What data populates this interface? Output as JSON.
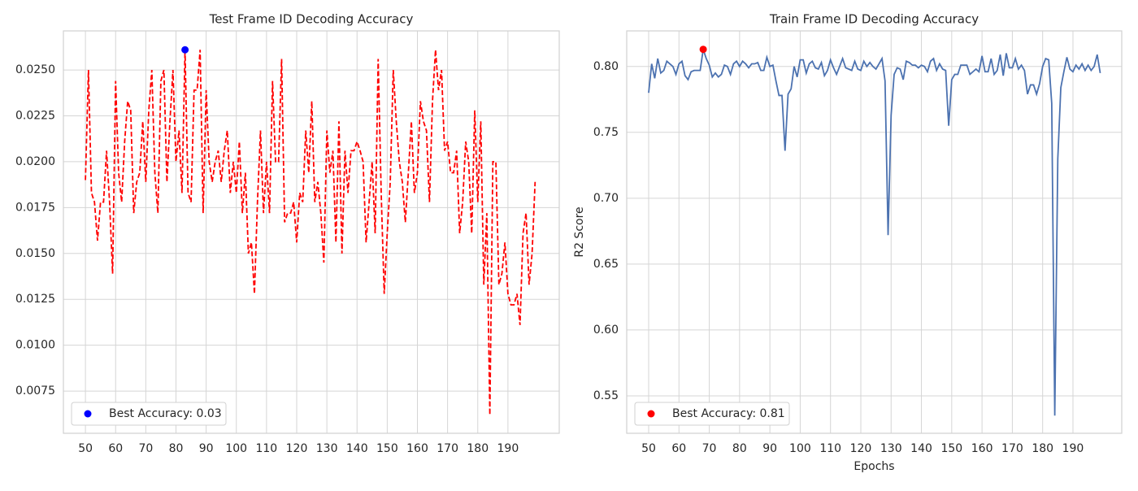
{
  "chart_data": [
    {
      "type": "line",
      "title": "Test Frame ID Decoding Accuracy",
      "x": [
        50,
        51,
        52,
        53,
        54,
        55,
        56,
        57,
        58,
        59,
        60,
        61,
        62,
        63,
        64,
        65,
        66,
        67,
        68,
        69,
        70,
        71,
        72,
        73,
        74,
        75,
        76,
        77,
        78,
        79,
        80,
        81,
        82,
        83,
        84,
        85,
        86,
        87,
        88,
        89,
        90,
        91,
        92,
        93,
        94,
        95,
        96,
        97,
        98,
        99,
        100,
        101,
        102,
        103,
        104,
        105,
        106,
        107,
        108,
        109,
        110,
        111,
        112,
        113,
        114,
        115,
        116,
        117,
        118,
        119,
        120,
        121,
        122,
        123,
        124,
        125,
        126,
        127,
        128,
        129,
        130,
        131,
        132,
        133,
        134,
        135,
        136,
        137,
        138,
        139,
        140,
        141,
        142,
        143,
        144,
        145,
        146,
        147,
        148,
        149,
        150,
        151,
        152,
        153,
        154,
        155,
        156,
        157,
        158,
        159,
        160,
        161,
        162,
        163,
        164,
        165,
        166,
        167,
        168,
        169,
        170,
        171,
        172,
        173,
        174,
        175,
        176,
        177,
        178,
        179,
        180,
        181,
        182,
        183,
        184,
        185,
        186,
        187,
        188,
        189,
        190,
        191,
        192,
        193,
        194,
        195,
        196,
        197,
        198,
        199
      ],
      "series": [
        {
          "color": "#ff0000",
          "linestyle": "dashed",
          "values": [
            0.019,
            0.025,
            0.0183,
            0.0178,
            0.0157,
            0.0178,
            0.0178,
            0.0206,
            0.0178,
            0.0139,
            0.0244,
            0.0194,
            0.0178,
            0.0211,
            0.0233,
            0.0228,
            0.0172,
            0.0189,
            0.0194,
            0.0222,
            0.0189,
            0.0228,
            0.025,
            0.0194,
            0.0172,
            0.0244,
            0.025,
            0.0189,
            0.0222,
            0.025,
            0.02,
            0.0217,
            0.0183,
            0.0261,
            0.0183,
            0.0178,
            0.0239,
            0.0239,
            0.0261,
            0.0172,
            0.0239,
            0.02,
            0.0189,
            0.02,
            0.0206,
            0.0189,
            0.0206,
            0.0217,
            0.0183,
            0.02,
            0.0183,
            0.0211,
            0.0172,
            0.0194,
            0.015,
            0.0156,
            0.0128,
            0.0178,
            0.0217,
            0.0172,
            0.02,
            0.0172,
            0.0244,
            0.02,
            0.02,
            0.0256,
            0.0167,
            0.0172,
            0.0172,
            0.0178,
            0.0156,
            0.0183,
            0.0178,
            0.0217,
            0.0194,
            0.0233,
            0.0178,
            0.0189,
            0.0172,
            0.0145,
            0.0217,
            0.0194,
            0.0206,
            0.0156,
            0.0222,
            0.015,
            0.0206,
            0.0183,
            0.0206,
            0.0206,
            0.0211,
            0.0206,
            0.02,
            0.0156,
            0.0178,
            0.02,
            0.0161,
            0.0256,
            0.0183,
            0.0128,
            0.0161,
            0.0189,
            0.025,
            0.0222,
            0.02,
            0.0189,
            0.0167,
            0.0194,
            0.0222,
            0.0183,
            0.0194,
            0.0233,
            0.0222,
            0.0217,
            0.0178,
            0.0233,
            0.0261,
            0.0239,
            0.025,
            0.0206,
            0.0211,
            0.0194,
            0.0194,
            0.0206,
            0.0161,
            0.0178,
            0.0211,
            0.02,
            0.0161,
            0.0228,
            0.0178,
            0.0222,
            0.0133,
            0.0172,
            0.0062,
            0.02,
            0.02,
            0.0133,
            0.0139,
            0.0156,
            0.0128,
            0.0122,
            0.0122,
            0.0128,
            0.0111,
            0.0161,
            0.0172,
            0.0133,
            0.015,
            0.0189
          ]
        },
        {
          "type": "scatter",
          "name": "Best Accuracy: 0.03",
          "color": "#0000ff",
          "x": [
            83
          ],
          "values": [
            0.0261
          ]
        }
      ],
      "xlim": [
        42.7,
        207.0
      ],
      "ylim": [
        0.0052,
        0.02713
      ],
      "xticks": [
        50,
        60,
        70,
        80,
        90,
        100,
        110,
        120,
        130,
        140,
        150,
        160,
        170,
        180,
        190
      ],
      "yticks": [
        0.0075,
        {
          "value": 0.01,
          "label": "0.0100"
        },
        0.0125,
        {
          "value": 0.015,
          "label": "0.0150"
        },
        0.0175,
        {
          "value": 0.02,
          "label": "0.0200"
        },
        0.0225,
        {
          "value": 0.025,
          "label": "0.0250"
        }
      ],
      "grid": true,
      "legend": "lower left"
    },
    {
      "type": "line",
      "title": "Train Frame ID Decoding Accuracy",
      "xlabel": "Epochs",
      "ylabel": "R2 Score",
      "x": [
        50,
        51,
        52,
        53,
        54,
        55,
        56,
        57,
        58,
        59,
        60,
        61,
        62,
        63,
        64,
        65,
        66,
        67,
        68,
        69,
        70,
        71,
        72,
        73,
        74,
        75,
        76,
        77,
        78,
        79,
        80,
        81,
        82,
        83,
        84,
        85,
        86,
        87,
        88,
        89,
        90,
        91,
        92,
        93,
        94,
        95,
        96,
        97,
        98,
        99,
        100,
        101,
        102,
        103,
        104,
        105,
        106,
        107,
        108,
        109,
        110,
        111,
        112,
        113,
        114,
        115,
        116,
        117,
        118,
        119,
        120,
        121,
        122,
        123,
        124,
        125,
        126,
        127,
        128,
        129,
        130,
        131,
        132,
        133,
        134,
        135,
        136,
        137,
        138,
        139,
        140,
        141,
        142,
        143,
        144,
        145,
        146,
        147,
        148,
        149,
        150,
        151,
        152,
        153,
        154,
        155,
        156,
        157,
        158,
        159,
        160,
        161,
        162,
        163,
        164,
        165,
        166,
        167,
        168,
        169,
        170,
        171,
        172,
        173,
        174,
        175,
        176,
        177,
        178,
        179,
        180,
        181,
        182,
        183,
        184,
        185,
        186,
        187,
        188,
        189,
        190,
        191,
        192,
        193,
        194,
        195,
        196,
        197,
        198,
        199
      ],
      "series": [
        {
          "color": "#4c72b0",
          "linestyle": "solid",
          "values": [
            0.78,
            0.802,
            0.791,
            0.806,
            0.795,
            0.797,
            0.804,
            0.802,
            0.8,
            0.794,
            0.802,
            0.804,
            0.793,
            0.79,
            0.796,
            0.797,
            0.797,
            0.797,
            0.813,
            0.806,
            0.801,
            0.792,
            0.795,
            0.792,
            0.794,
            0.801,
            0.8,
            0.794,
            0.802,
            0.804,
            0.8,
            0.804,
            0.802,
            0.799,
            0.802,
            0.802,
            0.803,
            0.797,
            0.797,
            0.807,
            0.8,
            0.801,
            0.789,
            0.778,
            0.778,
            0.736,
            0.779,
            0.783,
            0.8,
            0.792,
            0.805,
            0.805,
            0.795,
            0.802,
            0.804,
            0.799,
            0.798,
            0.803,
            0.793,
            0.797,
            0.805,
            0.799,
            0.794,
            0.8,
            0.806,
            0.799,
            0.798,
            0.797,
            0.804,
            0.798,
            0.797,
            0.804,
            0.8,
            0.803,
            0.8,
            0.798,
            0.802,
            0.806,
            0.789,
            0.672,
            0.763,
            0.794,
            0.799,
            0.798,
            0.79,
            0.804,
            0.803,
            0.801,
            0.801,
            0.799,
            0.801,
            0.8,
            0.796,
            0.804,
            0.806,
            0.797,
            0.802,
            0.798,
            0.797,
            0.755,
            0.79,
            0.794,
            0.794,
            0.801,
            0.801,
            0.801,
            0.794,
            0.796,
            0.798,
            0.796,
            0.808,
            0.796,
            0.796,
            0.806,
            0.794,
            0.797,
            0.809,
            0.793,
            0.81,
            0.799,
            0.799,
            0.806,
            0.798,
            0.801,
            0.797,
            0.779,
            0.786,
            0.786,
            0.779,
            0.787,
            0.8,
            0.806,
            0.805,
            0.772,
            0.535,
            0.73,
            0.784,
            0.796,
            0.807,
            0.798,
            0.796,
            0.801,
            0.798,
            0.802,
            0.797,
            0.801,
            0.797,
            0.8,
            0.809,
            0.795
          ]
        },
        {
          "type": "scatter",
          "name": "Best Accuracy: 0.81",
          "color": "#ff0000",
          "x": [
            68
          ],
          "values": [
            0.813
          ]
        }
      ],
      "xlim": [
        42.76,
        206.1
      ],
      "ylim": [
        0.5216,
        0.827
      ],
      "xticks": [
        50,
        60,
        70,
        80,
        90,
        100,
        110,
        120,
        130,
        140,
        150,
        160,
        170,
        180,
        190
      ],
      "yticks": [
        0.55,
        {
          "value": 0.6,
          "label": "0.60"
        },
        0.65,
        {
          "value": 0.7,
          "label": "0.70"
        },
        0.75,
        {
          "value": 0.8,
          "label": "0.80"
        }
      ],
      "grid": true,
      "legend": "lower left"
    }
  ]
}
